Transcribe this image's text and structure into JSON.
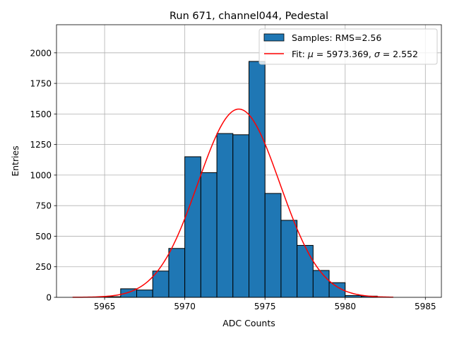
{
  "chart_data": {
    "type": "bar",
    "title": "Run 671, channel044, Pedestal",
    "xlabel": "ADC Counts",
    "ylabel": "Entries",
    "xlim": [
      5962.0,
      5986.0
    ],
    "ylim": [
      0,
      2230
    ],
    "xticks": [
      5965,
      5970,
      5975,
      5980,
      5985
    ],
    "yticks": [
      0,
      250,
      500,
      750,
      1000,
      1250,
      1500,
      1750,
      2000
    ],
    "grid": true,
    "legend_position": "top-right",
    "bin_edges": [
      5963,
      5964,
      5965,
      5966,
      5967,
      5968,
      5969,
      5970,
      5971,
      5972,
      5973,
      5974,
      5975,
      5976,
      5977,
      5978,
      5979,
      5980,
      5981,
      5982,
      5983
    ],
    "series": [
      {
        "name": "Samples: RMS=2.56",
        "kind": "histogram",
        "color": "#1f77b4",
        "edgecolor": "#000000",
        "values": [
          0,
          0,
          5,
          70,
          60,
          215,
          400,
          1150,
          1020,
          1340,
          1330,
          1930,
          850,
          630,
          425,
          220,
          120,
          15,
          10,
          0
        ]
      },
      {
        "name_prefix": "Fit: ",
        "mu_symbol": "μ",
        "mu_value": " = 5973.369, ",
        "sigma_symbol": "σ",
        "sigma_value": " = 2.552",
        "kind": "gaussian-fit",
        "color": "#ff0000",
        "mu": 5973.369,
        "sigma": 2.552,
        "amplitude": 1540,
        "x_range": [
          5963,
          5983
        ]
      }
    ]
  }
}
